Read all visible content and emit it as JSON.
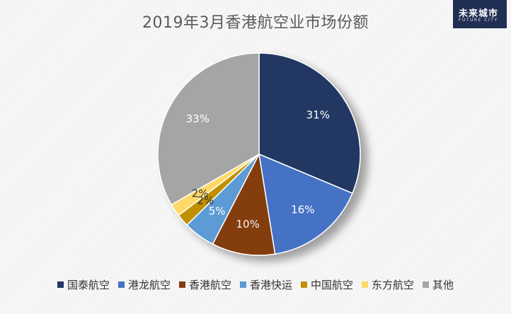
{
  "logo": {
    "main": "未来城市",
    "sub": "FUTURE CITY"
  },
  "chart_data": {
    "type": "pie",
    "title": "2019年3月香港航空业市场份额",
    "slices": [
      {
        "label": "国泰航空",
        "value": 31,
        "display": "31%",
        "color": "#203864"
      },
      {
        "label": "港龙航空",
        "value": 16,
        "display": "16%",
        "color": "#4472c4"
      },
      {
        "label": "香港航空",
        "value": 10,
        "display": "10%",
        "color": "#843c0c"
      },
      {
        "label": "香港快运",
        "value": 5,
        "display": "5%",
        "color": "#5b9bd5"
      },
      {
        "label": "中国航空",
        "value": 2,
        "display": "2%",
        "color": "#bf9000"
      },
      {
        "label": "东方航空",
        "value": 2,
        "display": "2%",
        "color": "#ffd966"
      },
      {
        "label": "其他",
        "value": 33,
        "display": "33%",
        "color": "#a5a5a5"
      }
    ],
    "legend_position": "bottom"
  }
}
